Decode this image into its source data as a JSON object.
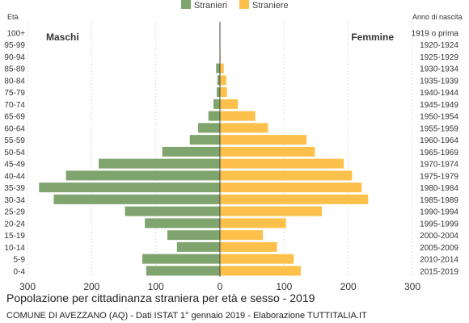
{
  "chart_data": {
    "type": "bar",
    "orientation": "horizontal-pyramid",
    "title": "Popolazione per cittadinanza straniera per età e sesso - 2019",
    "subtitle": "COMUNE DI AVEZZANO (AQ) - Dati ISTAT 1° gennaio 2019 - Elaborazione TUTTITALIA.IT",
    "left_axis_label": "Età",
    "right_axis_label": "Anno di nascita",
    "left_side_label": "Maschi",
    "right_side_label": "Femmine",
    "xlim": [
      -300,
      300
    ],
    "x_ticks": [
      "300",
      "200",
      "100",
      "0",
      "100",
      "200",
      "300"
    ],
    "grid": true,
    "legend_position": "top",
    "categories": [
      "100+",
      "95-99",
      "90-94",
      "85-89",
      "80-84",
      "75-79",
      "70-74",
      "65-69",
      "60-64",
      "55-59",
      "50-54",
      "45-49",
      "40-44",
      "35-39",
      "30-34",
      "25-29",
      "20-24",
      "15-19",
      "10-14",
      "5-9",
      "0-4"
    ],
    "birth_years": [
      "1919 o prima",
      "1920-1924",
      "1925-1929",
      "1930-1934",
      "1935-1939",
      "1940-1944",
      "1945-1949",
      "1950-1954",
      "1955-1959",
      "1960-1964",
      "1965-1969",
      "1970-1974",
      "1975-1979",
      "1980-1984",
      "1985-1989",
      "1990-1994",
      "1995-1999",
      "2000-2004",
      "2005-2009",
      "2010-2014",
      "2015-2019"
    ],
    "series": [
      {
        "name": "Stranieri",
        "color": "#80a46e",
        "side": "left",
        "values": [
          0,
          0,
          0,
          6,
          4,
          5,
          10,
          18,
          34,
          47,
          90,
          189,
          240,
          282,
          259,
          148,
          117,
          82,
          67,
          121,
          115
        ]
      },
      {
        "name": "Straniere",
        "color": "#fdc14b",
        "side": "right",
        "values": [
          0,
          0,
          1,
          6,
          10,
          11,
          28,
          55,
          75,
          135,
          148,
          193,
          206,
          221,
          231,
          159,
          103,
          67,
          89,
          115,
          126
        ]
      }
    ]
  }
}
